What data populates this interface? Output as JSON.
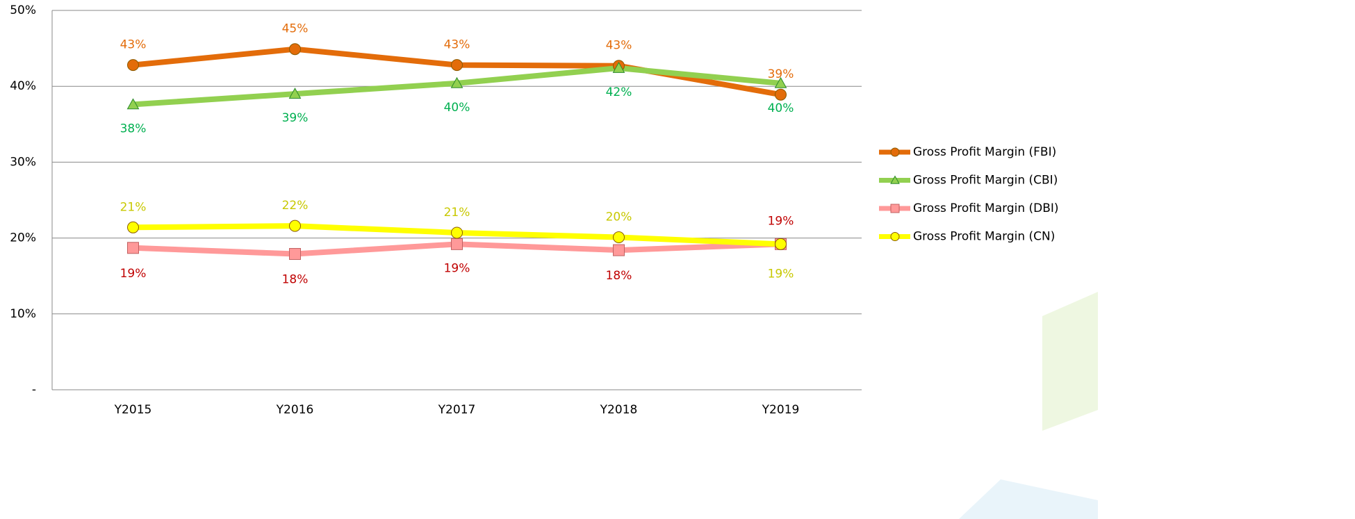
{
  "chart_data": {
    "type": "line",
    "categories": [
      "Y2015",
      "Y2016",
      "Y2017",
      "Y2018",
      "Y2019"
    ],
    "ylim": [
      0,
      50
    ],
    "yticks": [
      {
        "value": 0,
        "label": "-"
      },
      {
        "value": 10,
        "label": "10%"
      },
      {
        "value": 20,
        "label": "20%"
      },
      {
        "value": 30,
        "label": "30%"
      },
      {
        "value": 40,
        "label": "40%"
      },
      {
        "value": 50,
        "label": "50%"
      }
    ],
    "grid": true,
    "legend": "right",
    "series": [
      {
        "name": "Gross Profit Margin (FBI)",
        "color": "#e36c0a",
        "label_color": "#e36c0a",
        "marker": "circle",
        "values": [
          42.8,
          44.9,
          42.8,
          42.7,
          38.9
        ],
        "value_labels": [
          "43%",
          "45%",
          "43%",
          "43%",
          "39%"
        ]
      },
      {
        "name": "Gross Profit Margin (CBI)",
        "color": "#92d050",
        "label_color": "#00b050",
        "marker": "triangle",
        "values": [
          37.6,
          39.0,
          40.4,
          42.4,
          40.4
        ],
        "value_labels": [
          "38%",
          "39%",
          "40%",
          "42%",
          "40%"
        ]
      },
      {
        "name": "Gross Profit Margin (DBI)",
        "color": "#ff9999",
        "label_color": "#c00000",
        "marker": "square",
        "values": [
          18.7,
          17.9,
          19.2,
          18.4,
          19.2
        ],
        "value_labels": [
          "19%",
          "18%",
          "19%",
          "18%",
          "19%"
        ]
      },
      {
        "name": "Gross Profit Margin (CN)",
        "color": "#ffff00",
        "label_color": "#c8c800",
        "marker": "circle",
        "values": [
          21.4,
          21.6,
          20.7,
          20.1,
          19.2
        ],
        "value_labels": [
          "21%",
          "22%",
          "21%",
          "20%",
          "19%"
        ]
      }
    ]
  }
}
